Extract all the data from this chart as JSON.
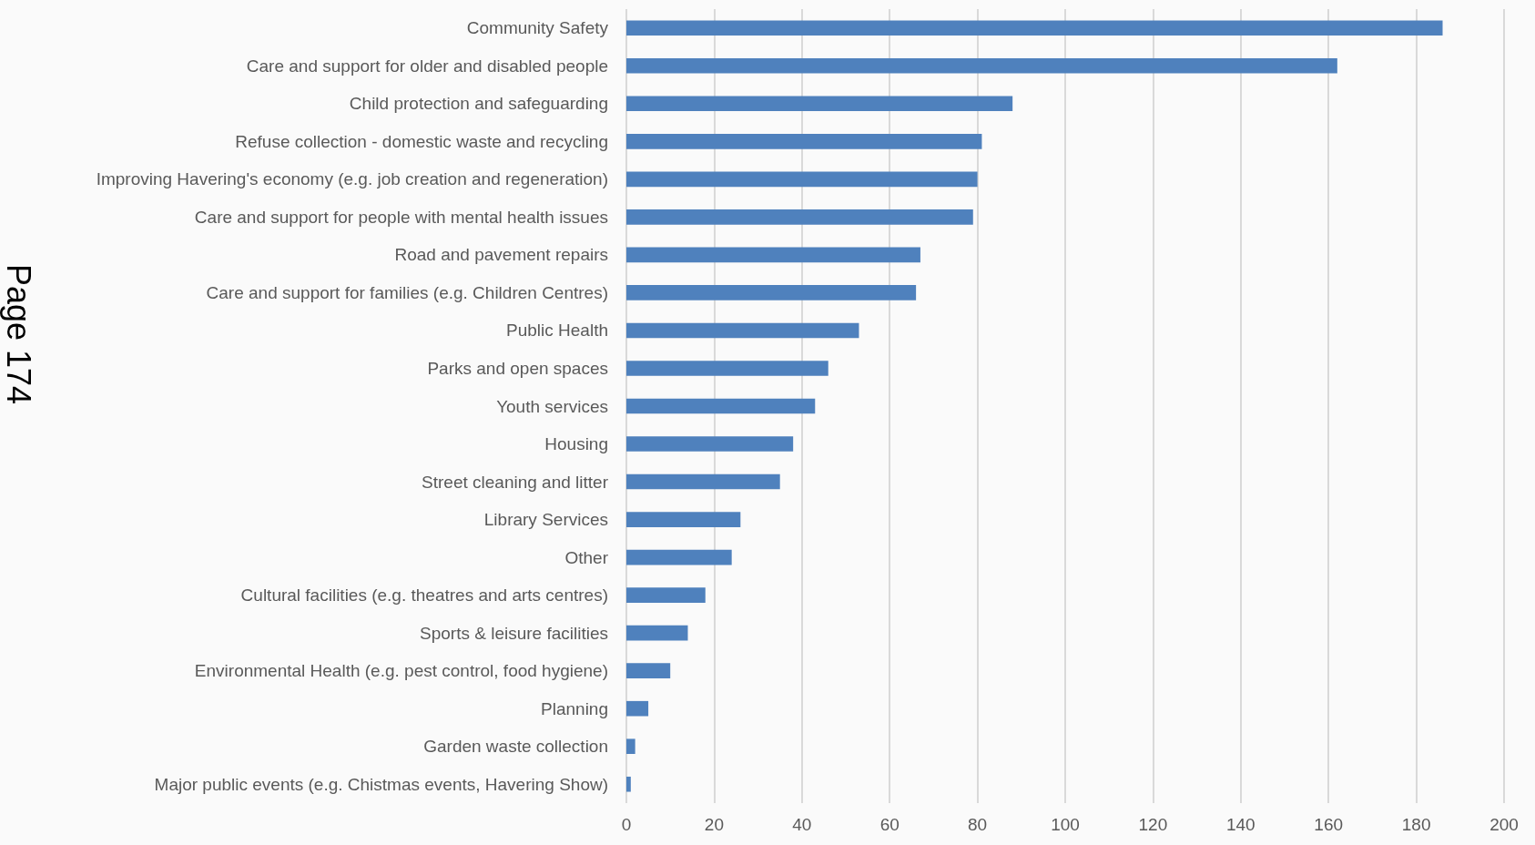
{
  "chart_data": {
    "type": "bar",
    "orientation": "horizontal",
    "categories": [
      "Community Safety",
      "Care and support for older and disabled people",
      "Child protection and safeguarding",
      "Refuse collection - domestic waste and recycling",
      "Improving Havering's economy (e.g. job creation and regeneration)",
      "Care and support for people with mental health issues",
      "Road and pavement repairs",
      "Care and support for families (e.g. Children Centres)",
      "Public Health",
      "Parks and open spaces",
      "Youth services",
      "Housing",
      "Street cleaning and litter",
      "Library Services",
      "Other",
      "Cultural facilities (e.g. theatres and arts centres)",
      "Sports & leisure facilities",
      "Environmental Health (e.g. pest control, food hygiene)",
      "Planning",
      "Garden waste collection",
      "Major public events (e.g. Chistmas events, Havering Show)"
    ],
    "values": [
      186,
      162,
      88,
      81,
      80,
      79,
      67,
      66,
      53,
      46,
      43,
      38,
      35,
      26,
      24,
      18,
      14,
      10,
      5,
      2,
      1
    ],
    "color": "#4f81bd",
    "xlim": [
      0,
      200
    ],
    "xticks": [
      0,
      20,
      40,
      60,
      80,
      100,
      120,
      140,
      160,
      180,
      200
    ],
    "grid": "x",
    "annotations": [
      "Page 174"
    ]
  }
}
